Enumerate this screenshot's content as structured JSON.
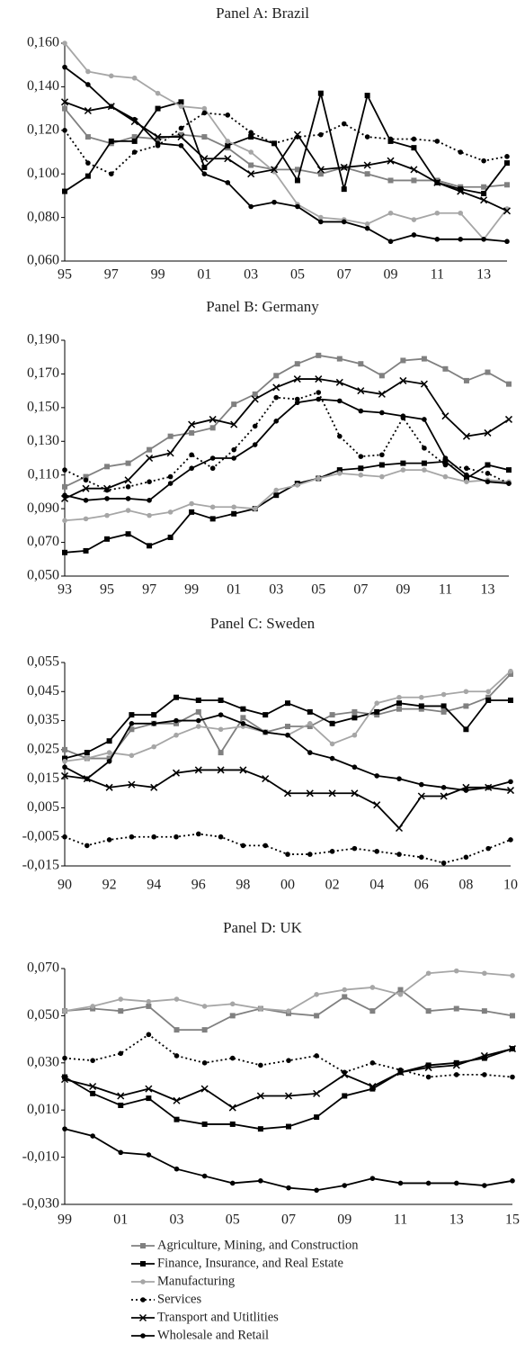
{
  "chart_data": [
    {
      "type": "line",
      "title": "Panel A: Brazil",
      "categories": [
        "95",
        null,
        "97",
        null,
        "99",
        null,
        "01",
        null,
        "03",
        null,
        "05",
        null,
        "07",
        null,
        "09",
        null,
        "11",
        null,
        "13",
        null
      ],
      "ylim": [
        0.06,
        0.16
      ],
      "yticks": [
        {
          "value": 0.06,
          "label": "0,060"
        },
        {
          "value": 0.08,
          "label": "0,080"
        },
        {
          "value": 0.1,
          "label": "0,100"
        },
        {
          "value": 0.12,
          "label": "0,120"
        },
        {
          "value": 0.14,
          "label": "0,140"
        },
        {
          "value": 0.16,
          "label": "0,160"
        }
      ],
      "series": [
        {
          "color": "#808080",
          "marker": "square",
          "line": "solid",
          "values": [
            0.13,
            0.117,
            0.114,
            0.117,
            0.116,
            0.118,
            0.117,
            0.112,
            0.104,
            0.102,
            0.102,
            0.1,
            0.103,
            0.1,
            0.097,
            0.097,
            0.097,
            0.094,
            0.094,
            0.095
          ]
        },
        {
          "color": "#000000",
          "marker": "square",
          "line": "solid",
          "values": [
            0.092,
            0.099,
            0.115,
            0.115,
            0.13,
            0.133,
            0.103,
            0.113,
            0.117,
            0.114,
            0.097,
            0.137,
            0.093,
            0.136,
            0.115,
            0.112,
            0.096,
            0.093,
            0.091,
            0.105
          ]
        },
        {
          "color": "#a6a6a6",
          "marker": "circle",
          "line": "solid",
          "values": [
            0.16,
            0.147,
            0.145,
            0.144,
            0.137,
            0.131,
            0.13,
            0.115,
            0.11,
            0.101,
            0.086,
            0.08,
            0.079,
            0.077,
            0.082,
            0.079,
            0.082,
            0.082,
            0.07,
            0.084
          ]
        },
        {
          "color": "#000000",
          "marker": "circle",
          "line": "dotted",
          "values": [
            0.12,
            0.105,
            0.1,
            0.11,
            0.113,
            0.121,
            0.128,
            0.127,
            0.119,
            0.114,
            0.117,
            0.118,
            0.123,
            0.117,
            0.116,
            0.116,
            0.115,
            0.11,
            0.106,
            0.108
          ]
        },
        {
          "color": "#000000",
          "marker": "x",
          "line": "solid",
          "values": [
            0.133,
            0.129,
            0.131,
            0.124,
            0.117,
            0.117,
            0.107,
            0.107,
            0.1,
            0.102,
            0.118,
            0.102,
            0.103,
            0.104,
            0.106,
            0.102,
            0.096,
            0.092,
            0.088,
            0.083
          ]
        },
        {
          "color": "#000000",
          "marker": "circle",
          "line": "solid",
          "values": [
            0.149,
            0.141,
            0.131,
            0.125,
            0.114,
            0.113,
            0.1,
            0.096,
            0.085,
            0.087,
            0.085,
            0.078,
            0.078,
            0.075,
            0.069,
            0.072,
            0.07,
            0.07,
            0.07,
            0.069
          ]
        }
      ]
    },
    {
      "type": "line",
      "title": "Panel B: Germany",
      "categories": [
        "93",
        null,
        "95",
        null,
        "97",
        null,
        "99",
        null,
        "01",
        null,
        "03",
        null,
        "05",
        null,
        "07",
        null,
        "09",
        null,
        "11",
        null,
        "13",
        null
      ],
      "ylim": [
        0.05,
        0.19
      ],
      "yticks": [
        {
          "value": 0.05,
          "label": "0,050"
        },
        {
          "value": 0.07,
          "label": "0,070"
        },
        {
          "value": 0.09,
          "label": "0,090"
        },
        {
          "value": 0.11,
          "label": "0,110"
        },
        {
          "value": 0.13,
          "label": "0,130"
        },
        {
          "value": 0.15,
          "label": "0,150"
        },
        {
          "value": 0.17,
          "label": "0,170"
        },
        {
          "value": 0.19,
          "label": "0,190"
        }
      ],
      "series": [
        {
          "color": "#808080",
          "marker": "square",
          "line": "solid",
          "values": [
            0.103,
            0.109,
            0.115,
            0.117,
            0.125,
            0.133,
            0.135,
            0.138,
            0.152,
            0.158,
            0.169,
            0.176,
            0.181,
            0.179,
            0.176,
            0.169,
            0.178,
            0.179,
            0.173,
            0.166,
            0.171,
            0.164
          ]
        },
        {
          "color": "#000000",
          "marker": "square",
          "line": "solid",
          "values": [
            0.064,
            0.065,
            0.072,
            0.075,
            0.068,
            0.073,
            0.088,
            0.084,
            0.087,
            0.09,
            0.098,
            0.105,
            0.108,
            0.113,
            0.114,
            0.116,
            0.117,
            0.117,
            0.118,
            0.108,
            0.116,
            0.113
          ]
        },
        {
          "color": "#a6a6a6",
          "marker": "circle",
          "line": "solid",
          "values": [
            0.083,
            0.084,
            0.086,
            0.089,
            0.086,
            0.088,
            0.093,
            0.091,
            0.091,
            0.09,
            0.101,
            0.104,
            0.108,
            0.111,
            0.11,
            0.109,
            0.113,
            0.113,
            0.109,
            0.106,
            0.107,
            0.106
          ]
        },
        {
          "color": "#000000",
          "marker": "circle",
          "line": "dotted",
          "values": [
            0.113,
            0.107,
            0.101,
            0.103,
            0.106,
            0.109,
            0.122,
            0.114,
            0.125,
            0.139,
            0.156,
            0.155,
            0.159,
            0.133,
            0.121,
            0.122,
            0.144,
            0.126,
            0.116,
            0.114,
            0.111,
            0.105
          ]
        },
        {
          "color": "#000000",
          "marker": "x",
          "line": "solid",
          "values": [
            0.096,
            0.102,
            0.102,
            0.107,
            0.12,
            0.123,
            0.14,
            0.143,
            0.14,
            0.155,
            0.162,
            0.167,
            0.167,
            0.165,
            0.16,
            0.158,
            0.166,
            0.164,
            0.145,
            0.133,
            0.135,
            0.143
          ]
        },
        {
          "color": "#000000",
          "marker": "circle",
          "line": "solid",
          "values": [
            0.098,
            0.095,
            0.096,
            0.096,
            0.095,
            0.105,
            0.114,
            0.12,
            0.12,
            0.128,
            0.142,
            0.153,
            0.155,
            0.154,
            0.148,
            0.147,
            0.145,
            0.143,
            0.12,
            0.11,
            0.106,
            0.105
          ]
        }
      ]
    },
    {
      "type": "line",
      "title": "Panel C: Sweden",
      "categories": [
        "90",
        null,
        "92",
        null,
        "94",
        null,
        "96",
        null,
        "98",
        null,
        "00",
        null,
        "02",
        null,
        "04",
        null,
        "06",
        null,
        "08",
        null,
        "10"
      ],
      "ylim": [
        -0.015,
        0.055
      ],
      "yticks": [
        {
          "value": -0.015,
          "label": "-0,015"
        },
        {
          "value": -0.005,
          "label": "-0,005"
        },
        {
          "value": 0.005,
          "label": "0,005"
        },
        {
          "value": 0.015,
          "label": "0,015"
        },
        {
          "value": 0.025,
          "label": "0,025"
        },
        {
          "value": 0.035,
          "label": "0,035"
        },
        {
          "value": 0.045,
          "label": "0,045"
        },
        {
          "value": 0.055,
          "label": "0,055"
        }
      ],
      "series": [
        {
          "color": "#808080",
          "marker": "square",
          "line": "solid",
          "values": [
            0.025,
            0.022,
            0.022,
            0.032,
            0.034,
            0.034,
            0.038,
            0.024,
            0.036,
            0.031,
            0.033,
            0.033,
            0.037,
            0.038,
            0.037,
            0.039,
            0.039,
            0.038,
            0.04,
            0.043,
            0.051
          ]
        },
        {
          "color": "#000000",
          "marker": "square",
          "line": "solid",
          "values": [
            0.022,
            0.024,
            0.028,
            0.037,
            0.037,
            0.043,
            0.042,
            0.042,
            0.039,
            0.037,
            0.041,
            0.038,
            0.034,
            0.036,
            0.038,
            0.041,
            0.04,
            0.04,
            0.032,
            0.042,
            0.042
          ]
        },
        {
          "color": "#a6a6a6",
          "marker": "circle",
          "line": "solid",
          "values": [
            0.021,
            0.022,
            0.024,
            0.023,
            0.026,
            0.03,
            0.033,
            0.032,
            0.033,
            0.031,
            0.03,
            0.034,
            0.027,
            0.03,
            0.041,
            0.043,
            0.043,
            0.044,
            0.045,
            0.045,
            0.052
          ]
        },
        {
          "color": "#000000",
          "marker": "circle",
          "line": "dotted",
          "values": [
            -0.005,
            -0.008,
            -0.006,
            -0.005,
            -0.005,
            -0.005,
            -0.004,
            -0.005,
            -0.008,
            -0.008,
            -0.011,
            -0.011,
            -0.01,
            -0.009,
            -0.01,
            -0.011,
            -0.012,
            -0.014,
            -0.012,
            -0.009,
            -0.006
          ]
        },
        {
          "color": "#000000",
          "marker": "x",
          "line": "solid",
          "values": [
            0.016,
            0.015,
            0.012,
            0.013,
            0.012,
            0.017,
            0.018,
            0.018,
            0.018,
            0.015,
            0.01,
            0.01,
            0.01,
            0.01,
            0.006,
            -0.002,
            0.009,
            0.009,
            0.012,
            0.012,
            0.011
          ]
        },
        {
          "color": "#000000",
          "marker": "circle",
          "line": "solid",
          "values": [
            0.019,
            0.015,
            0.021,
            0.034,
            0.034,
            0.035,
            0.035,
            0.037,
            0.034,
            0.031,
            0.03,
            0.024,
            0.022,
            0.019,
            0.016,
            0.015,
            0.013,
            0.012,
            0.011,
            0.012,
            0.014
          ]
        }
      ]
    },
    {
      "type": "line",
      "title": "Panel D: UK",
      "categories": [
        "99",
        null,
        "01",
        null,
        "03",
        null,
        "05",
        null,
        "07",
        null,
        "09",
        null,
        "11",
        null,
        "13",
        null,
        "15"
      ],
      "ylim": [
        -0.03,
        0.07
      ],
      "yticks": [
        {
          "value": -0.03,
          "label": "-0,030"
        },
        {
          "value": -0.01,
          "label": "-0,010"
        },
        {
          "value": 0.01,
          "label": "0,010"
        },
        {
          "value": 0.03,
          "label": "0,030"
        },
        {
          "value": 0.05,
          "label": "0,050"
        },
        {
          "value": 0.07,
          "label": "0,070"
        }
      ],
      "series": [
        {
          "name": "Agriculture, Mining, and Construction",
          "color": "#808080",
          "marker": "square",
          "line": "solid",
          "values": [
            0.052,
            0.053,
            0.052,
            0.054,
            0.044,
            0.044,
            0.05,
            0.053,
            0.051,
            0.05,
            0.058,
            0.052,
            0.061,
            0.052,
            0.053,
            0.052,
            0.05
          ]
        },
        {
          "name": "Finance, Insurance, and Real Estate",
          "color": "#000000",
          "marker": "square",
          "line": "solid",
          "values": [
            0.024,
            0.017,
            0.012,
            0.015,
            0.006,
            0.004,
            0.004,
            0.002,
            0.003,
            0.007,
            0.016,
            0.019,
            0.026,
            0.029,
            0.03,
            0.032,
            0.036
          ]
        },
        {
          "name": "Manufacturing",
          "color": "#a6a6a6",
          "marker": "circle",
          "line": "solid",
          "values": [
            0.052,
            0.054,
            0.057,
            0.056,
            0.057,
            0.054,
            0.055,
            0.053,
            0.052,
            0.059,
            0.061,
            0.062,
            0.059,
            0.068,
            0.069,
            0.068,
            0.067
          ]
        },
        {
          "name": "Services",
          "color": "#000000",
          "marker": "circle",
          "line": "dotted",
          "values": [
            0.032,
            0.031,
            0.034,
            0.042,
            0.033,
            0.03,
            0.032,
            0.029,
            0.031,
            0.033,
            0.026,
            0.03,
            0.027,
            0.024,
            0.025,
            0.025,
            0.024
          ]
        },
        {
          "name": "Transport and Utitlities",
          "color": "#000000",
          "marker": "x",
          "line": "solid",
          "values": [
            0.023,
            0.02,
            0.016,
            0.019,
            0.014,
            0.019,
            0.011,
            0.016,
            0.016,
            0.017,
            0.025,
            0.02,
            0.026,
            0.028,
            0.029,
            0.033,
            0.036
          ]
        },
        {
          "name": "Wholesale and Retail",
          "color": "#000000",
          "marker": "circle",
          "line": "solid",
          "values": [
            0.002,
            -0.001,
            -0.008,
            -0.009,
            -0.015,
            -0.018,
            -0.021,
            -0.02,
            -0.023,
            -0.024,
            -0.022,
            -0.019,
            -0.021,
            -0.021,
            -0.021,
            -0.022,
            -0.02
          ]
        }
      ]
    }
  ]
}
